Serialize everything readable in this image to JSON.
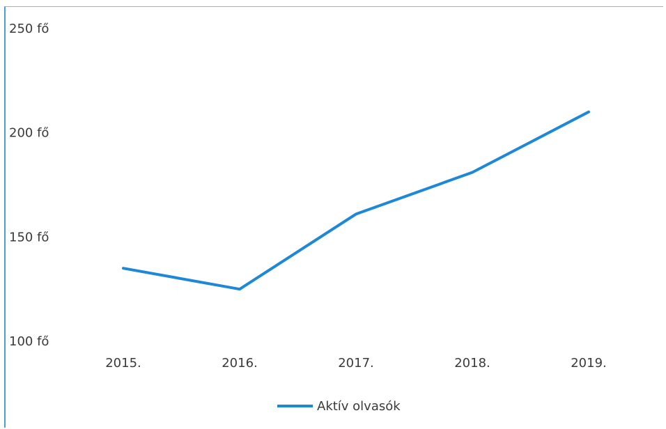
{
  "chart_data": {
    "type": "line",
    "categories": [
      "2015.",
      "2016.",
      "2017.",
      "2018.",
      "2019."
    ],
    "series": [
      {
        "name": "Aktív olvasók",
        "values": [
          135,
          125,
          161,
          181,
          210
        ],
        "color": "#1e88d8"
      }
    ],
    "yticks": [
      "100 fő",
      "150 fő",
      "200 fő",
      "250 fő"
    ],
    "ytick_values": [
      100,
      150,
      200,
      250
    ],
    "ylim": [
      100,
      250
    ],
    "grid": false,
    "legend_position": "bottom"
  }
}
